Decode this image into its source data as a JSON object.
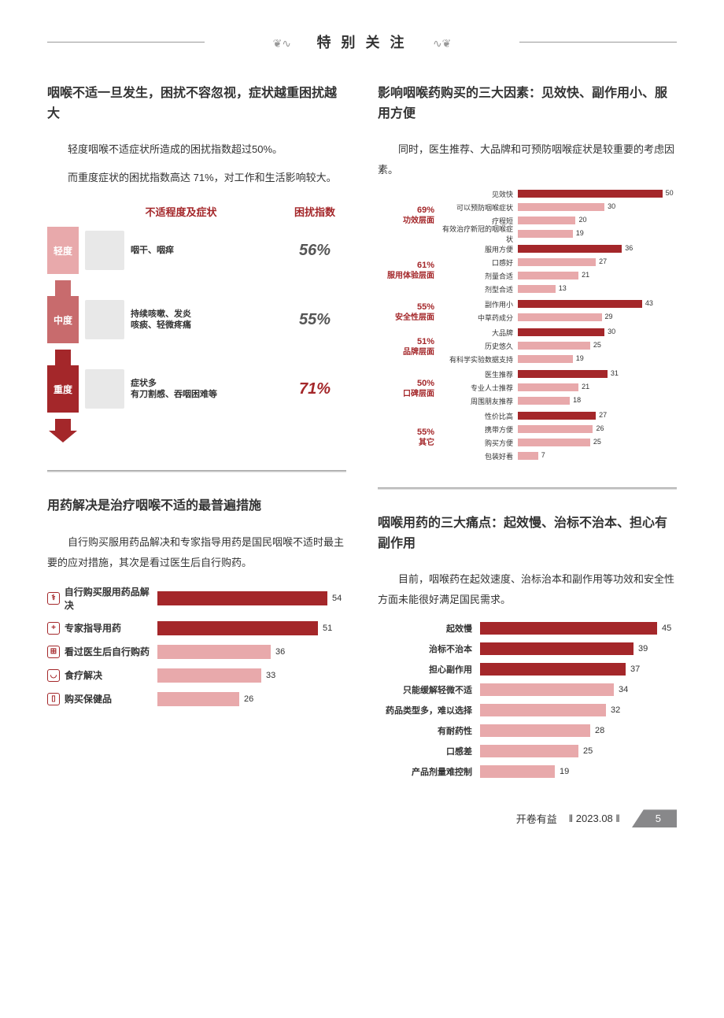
{
  "header": {
    "title": "特 别 关 注"
  },
  "colors": {
    "dark_red": "#a4272a",
    "light_red": "#e8a9ab",
    "gray_bar": "#999999",
    "severity_light": "#e8a9ab",
    "severity_mid": "#c86b6d",
    "severity_heavy": "#a4272a"
  },
  "section1": {
    "title": "咽喉不适一旦发生，困扰不容忽视，症状越重困扰越大",
    "body1": "轻度咽喉不适症状所造成的困扰指数超过50%。",
    "body2": "而重度症状的困扰指数高达 71%，对工作和生活影响较大。",
    "chart_header": {
      "mid": "不适程度及症状",
      "right": "困扰指数"
    },
    "rows": [
      {
        "severity": "轻度",
        "bg": "#e8a9ab",
        "symptom": "咽干、咽痒",
        "index": "56%",
        "index_color": "#555"
      },
      {
        "severity": "中度",
        "bg": "#c86b6d",
        "symptom": "持续咳嗽、发炎\n咳痰、轻微疼痛",
        "index": "55%",
        "index_color": "#555"
      },
      {
        "severity": "重度",
        "bg": "#a4272a",
        "symptom": "症状多\n有刀割感、吞咽困难等",
        "index": "71%",
        "index_color": "#a4272a"
      }
    ]
  },
  "section2": {
    "title": "用药解决是治疗咽喉不适的最普遍措施",
    "body": "自行购买服用药品解决和专家指导用药是国民咽喉不适时最主要的应对措施，其次是看过医生后自行购药。",
    "max": 60,
    "rows": [
      {
        "label": "自行购买服用药品解决",
        "value": 54,
        "color": "#a4272a",
        "icon_color": "#a4272a",
        "icon": "⚕"
      },
      {
        "label": "专家指导用药",
        "value": 51,
        "color": "#a4272a",
        "icon_color": "#a4272a",
        "icon": "+"
      },
      {
        "label": "看过医生后自行购药",
        "value": 36,
        "color": "#e8a9ab",
        "icon_color": "#a4272a",
        "icon": "⊞"
      },
      {
        "label": "食疗解决",
        "value": 33,
        "color": "#e8a9ab",
        "icon_color": "#a4272a",
        "icon": "◡"
      },
      {
        "label": "购买保健品",
        "value": 26,
        "color": "#e8a9ab",
        "icon_color": "#a4272a",
        "icon": "▯"
      }
    ]
  },
  "section3": {
    "title": "影响咽喉药购买的三大因素：见效快、副作用小、服用方便",
    "body": "同时，医生推荐、大品牌和可预防咽喉症状是较重要的考虑因素。",
    "max": 55,
    "groups": [
      {
        "pct": "69%",
        "name": "功效层面",
        "items": [
          {
            "label": "见效快",
            "value": 50,
            "top": true
          },
          {
            "label": "可以预防咽喉症状",
            "value": 30
          },
          {
            "label": "疗程短",
            "value": 20
          },
          {
            "label": "有效治疗新冠的咽喉症状",
            "value": 19
          }
        ]
      },
      {
        "pct": "61%",
        "name": "服用体验层面",
        "items": [
          {
            "label": "服用方便",
            "value": 36,
            "top": true
          },
          {
            "label": "口感好",
            "value": 27
          },
          {
            "label": "剂量合适",
            "value": 21
          },
          {
            "label": "剂型合适",
            "value": 13
          }
        ]
      },
      {
        "pct": "55%",
        "name": "安全性层面",
        "items": [
          {
            "label": "副作用小",
            "value": 43,
            "top": true
          },
          {
            "label": "中草药成分",
            "value": 29
          }
        ]
      },
      {
        "pct": "51%",
        "name": "品牌层面",
        "items": [
          {
            "label": "大品牌",
            "value": 30,
            "top": true
          },
          {
            "label": "历史悠久",
            "value": 25
          },
          {
            "label": "有科学实验数据支持",
            "value": 19
          }
        ]
      },
      {
        "pct": "50%",
        "name": "口碑层面",
        "items": [
          {
            "label": "医生推荐",
            "value": 31,
            "top": true
          },
          {
            "label": "专业人士推荐",
            "value": 21
          },
          {
            "label": "周围朋友推荐",
            "value": 18
          }
        ]
      },
      {
        "pct": "55%",
        "name": "其它",
        "items": [
          {
            "label": "性价比高",
            "value": 27,
            "top": true
          },
          {
            "label": "携带方便",
            "value": 26
          },
          {
            "label": "购买方便",
            "value": 25
          },
          {
            "label": "包装好看",
            "value": 7
          }
        ]
      }
    ]
  },
  "section4": {
    "title": "咽喉用药的三大痛点：起效慢、治标不治本、担心有副作用",
    "body": "目前，咽喉药在起效速度、治标治本和副作用等功效和安全性方面未能很好满足国民需求。",
    "max": 50,
    "rows": [
      {
        "label": "起效慢",
        "value": 45,
        "color": "#a4272a"
      },
      {
        "label": "治标不治本",
        "value": 39,
        "color": "#a4272a"
      },
      {
        "label": "担心副作用",
        "value": 37,
        "color": "#a4272a"
      },
      {
        "label": "只能缓解轻微不适",
        "value": 34,
        "color": "#e8a9ab"
      },
      {
        "label": "药品类型多，难以选择",
        "value": 32,
        "color": "#e8a9ab"
      },
      {
        "label": "有耐药性",
        "value": 28,
        "color": "#e8a9ab"
      },
      {
        "label": "口感差",
        "value": 25,
        "color": "#e8a9ab"
      },
      {
        "label": "产品剂量难控制",
        "value": 19,
        "color": "#e8a9ab"
      }
    ]
  },
  "footer": {
    "source": "开卷有益",
    "date": "2023.08",
    "page": "5"
  }
}
